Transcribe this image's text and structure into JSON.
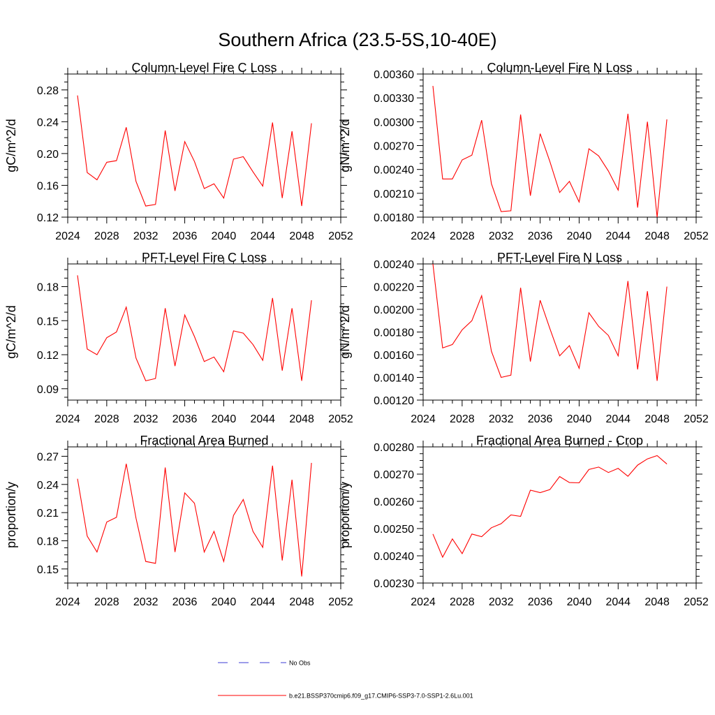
{
  "figure": {
    "title": "Southern Africa (23.5-5S,10-40E)",
    "line_color": "#ff0000",
    "legend": [
      {
        "label": "No Obs",
        "style": "dashed",
        "color": "#3b3bd6"
      },
      {
        "label": "b.e21.BSSP370cmip6.f09_g17.CMIP6-SSP3-7.0-SSP1-2.6Lu.001",
        "style": "solid",
        "color": "#ff0000"
      }
    ]
  },
  "chart_data": [
    {
      "type": "line",
      "title": "Column-Level Fire C Loss",
      "ylabel": "gC/m^2/d",
      "xlim": [
        2024,
        2052
      ],
      "ylim": [
        0.12,
        0.3
      ],
      "xticks": [
        2024,
        2028,
        2032,
        2036,
        2040,
        2044,
        2048,
        2052
      ],
      "yticks": [
        "0.12",
        "0.16",
        "0.20",
        "0.24",
        "0.28"
      ],
      "x": [
        2025,
        2026,
        2027,
        2028,
        2029,
        2030,
        2031,
        2032,
        2033,
        2034,
        2035,
        2036,
        2037,
        2038,
        2039,
        2040,
        2041,
        2042,
        2043,
        2044,
        2045,
        2046,
        2047,
        2048,
        2049
      ],
      "series": [
        {
          "values": [
            0.273,
            0.176,
            0.167,
            0.189,
            0.191,
            0.233,
            0.165,
            0.134,
            0.136,
            0.229,
            0.153,
            0.215,
            0.19,
            0.156,
            0.162,
            0.144,
            0.193,
            0.196,
            0.177,
            0.159,
            0.239,
            0.144,
            0.228,
            0.134,
            0.238
          ]
        }
      ]
    },
    {
      "type": "line",
      "title": "Column-Level Fire N Loss",
      "ylabel": "gN/m^2/d",
      "xlim": [
        2024,
        2052
      ],
      "ylim": [
        0.0018,
        0.0036
      ],
      "xticks": [
        2024,
        2028,
        2032,
        2036,
        2040,
        2044,
        2048,
        2052
      ],
      "yticks": [
        "0.00180",
        "0.00210",
        "0.00240",
        "0.00270",
        "0.00300",
        "0.00330",
        "0.00360"
      ],
      "x": [
        2025,
        2026,
        2027,
        2028,
        2029,
        2030,
        2031,
        2032,
        2033,
        2034,
        2035,
        2036,
        2037,
        2038,
        2039,
        2040,
        2041,
        2042,
        2043,
        2044,
        2045,
        2046,
        2047,
        2048,
        2049
      ],
      "series": [
        {
          "values": [
            0.00345,
            0.00228,
            0.00228,
            0.00252,
            0.00258,
            0.00302,
            0.00222,
            0.00187,
            0.00188,
            0.00309,
            0.00207,
            0.00285,
            0.0025,
            0.00211,
            0.00225,
            0.00199,
            0.00266,
            0.00257,
            0.00238,
            0.00214,
            0.0031,
            0.00192,
            0.003,
            0.0018,
            0.00303
          ]
        }
      ]
    },
    {
      "type": "line",
      "title": "PFT-Level Fire C Loss",
      "ylabel": "gC/m^2/d",
      "xlim": [
        2024,
        2052
      ],
      "ylim": [
        0.08,
        0.2
      ],
      "xticks": [
        2024,
        2028,
        2032,
        2036,
        2040,
        2044,
        2048,
        2052
      ],
      "yticks": [
        "0.09",
        "0.12",
        "0.15",
        "0.18"
      ],
      "x": [
        2025,
        2026,
        2027,
        2028,
        2029,
        2030,
        2031,
        2032,
        2033,
        2034,
        2035,
        2036,
        2037,
        2038,
        2039,
        2040,
        2041,
        2042,
        2043,
        2044,
        2045,
        2046,
        2047,
        2048,
        2049
      ],
      "series": [
        {
          "values": [
            0.19,
            0.125,
            0.12,
            0.135,
            0.14,
            0.162,
            0.117,
            0.097,
            0.099,
            0.161,
            0.11,
            0.155,
            0.136,
            0.114,
            0.118,
            0.105,
            0.141,
            0.139,
            0.129,
            0.115,
            0.17,
            0.106,
            0.161,
            0.097,
            0.168
          ]
        }
      ]
    },
    {
      "type": "line",
      "title": "PFT-Level Fire N Loss",
      "ylabel": "gN/m^2/d",
      "xlim": [
        2024,
        2052
      ],
      "ylim": [
        0.0012,
        0.0024
      ],
      "xticks": [
        2024,
        2028,
        2032,
        2036,
        2040,
        2044,
        2048,
        2052
      ],
      "yticks": [
        "0.00120",
        "0.00140",
        "0.00160",
        "0.00180",
        "0.00200",
        "0.00220",
        "0.00240"
      ],
      "x": [
        2025,
        2026,
        2027,
        2028,
        2029,
        2030,
        2031,
        2032,
        2033,
        2034,
        2035,
        2036,
        2037,
        2038,
        2039,
        2040,
        2041,
        2042,
        2043,
        2044,
        2045,
        2046,
        2047,
        2048,
        2049
      ],
      "series": [
        {
          "values": [
            0.0024,
            0.00166,
            0.00169,
            0.00182,
            0.0019,
            0.00212,
            0.00163,
            0.0014,
            0.00142,
            0.00219,
            0.00154,
            0.00208,
            0.00183,
            0.00159,
            0.00168,
            0.00148,
            0.00197,
            0.00185,
            0.00177,
            0.00159,
            0.00225,
            0.00147,
            0.00216,
            0.00137,
            0.0022
          ]
        }
      ]
    },
    {
      "type": "line",
      "title": "Fractional Area Burned",
      "ylabel": "proportion/y",
      "xlim": [
        2024,
        2052
      ],
      "ylim": [
        0.135,
        0.28
      ],
      "xticks": [
        2024,
        2028,
        2032,
        2036,
        2040,
        2044,
        2048,
        2052
      ],
      "yticks": [
        "0.15",
        "0.18",
        "0.21",
        "0.24",
        "0.27"
      ],
      "x": [
        2025,
        2026,
        2027,
        2028,
        2029,
        2030,
        2031,
        2032,
        2033,
        2034,
        2035,
        2036,
        2037,
        2038,
        2039,
        2040,
        2041,
        2042,
        2043,
        2044,
        2045,
        2046,
        2047,
        2048,
        2049
      ],
      "series": [
        {
          "values": [
            0.246,
            0.185,
            0.168,
            0.2,
            0.205,
            0.262,
            0.204,
            0.158,
            0.156,
            0.258,
            0.168,
            0.231,
            0.22,
            0.168,
            0.19,
            0.158,
            0.207,
            0.224,
            0.19,
            0.173,
            0.26,
            0.159,
            0.245,
            0.142,
            0.263
          ]
        }
      ]
    },
    {
      "type": "line",
      "title": "Fractional Area Burned - Crop",
      "ylabel": "proportion/y",
      "xlim": [
        2024,
        2052
      ],
      "ylim": [
        0.0023,
        0.0028
      ],
      "xticks": [
        2024,
        2028,
        2032,
        2036,
        2040,
        2044,
        2048,
        2052
      ],
      "yticks": [
        "0.00230",
        "0.00240",
        "0.00250",
        "0.00260",
        "0.00270",
        "0.00280"
      ],
      "x": [
        2025,
        2026,
        2027,
        2028,
        2029,
        2030,
        2031,
        2032,
        2033,
        2034,
        2035,
        2036,
        2037,
        2038,
        2039,
        2040,
        2041,
        2042,
        2043,
        2044,
        2045,
        2046,
        2047,
        2048,
        2049
      ],
      "series": [
        {
          "values": [
            0.00248,
            0.002395,
            0.002462,
            0.002408,
            0.00248,
            0.00247,
            0.002503,
            0.002518,
            0.00255,
            0.002545,
            0.002641,
            0.002632,
            0.002643,
            0.002691,
            0.002669,
            0.002668,
            0.002717,
            0.002726,
            0.002706,
            0.002721,
            0.002692,
            0.002733,
            0.002756,
            0.002768,
            0.002737
          ]
        }
      ]
    }
  ]
}
